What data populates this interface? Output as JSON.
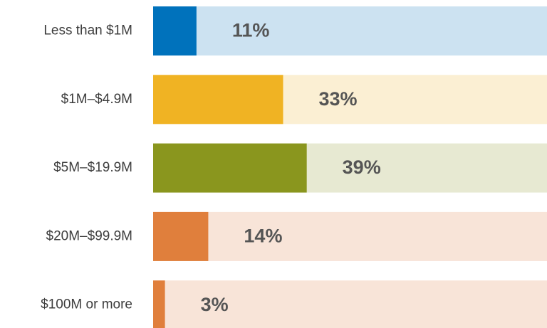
{
  "chart_data": {
    "type": "hbar",
    "categories": [
      "Less than $1M",
      "$1M–$4.9M",
      "$5M–$19.9M",
      "$20M–$99.9M",
      "$100M or more"
    ],
    "values": [
      11,
      33,
      39,
      14,
      3
    ],
    "value_labels": [
      "11%",
      "33%",
      "39%",
      "14%",
      "3%"
    ],
    "colors": [
      "#0072bc",
      "#f0b323",
      "#8a961e",
      "#e07f3c",
      "#e07f3c"
    ],
    "track_colors": [
      "#cce2f1",
      "#fbefd3",
      "#e7e9d2",
      "#f8e4d8",
      "#f8e4d8"
    ],
    "xlim": [
      0,
      100
    ]
  }
}
